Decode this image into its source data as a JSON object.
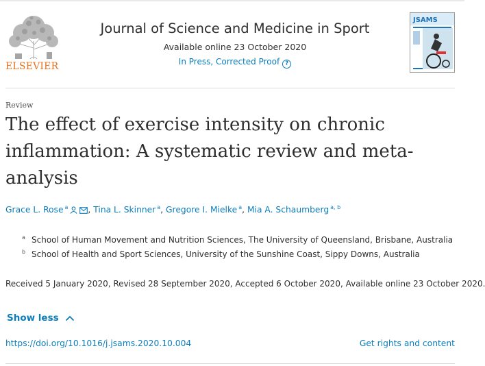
{
  "publisher": {
    "logo_word": "ELSEVIER"
  },
  "journal": {
    "title": "Journal of Science and Medicine in Sport",
    "available_online": "Available online 23 October 2020",
    "status": "In Press, Corrected Proof",
    "help_symbol": "?",
    "cover_label": "JSAMS"
  },
  "article": {
    "type": "Review",
    "title": "The effect of exercise intensity on chronic inflammation: A systematic review and meta-analysis",
    "authors": [
      {
        "name": "Grace L. Rose",
        "affil": "a",
        "icons": [
          "person-icon",
          "email-icon"
        ]
      },
      {
        "name": "Tina L. Skinner",
        "affil": "a"
      },
      {
        "name": "Gregore I. Mielke",
        "affil": "a"
      },
      {
        "name": "Mia A. Schaumberg",
        "affil": "a, b"
      }
    ],
    "author_separator": ",",
    "affiliations": [
      {
        "mark": "a",
        "text": "School of Human Movement and Nutrition Sciences, The University of Queensland, Brisbane, Australia"
      },
      {
        "mark": "b",
        "text": "School of Health and Sport Sciences, University of the Sunshine Coast, Sippy Downs, Australia"
      }
    ],
    "dates": "Received 5 January 2020, Revised 28 September 2020, Accepted 6 October 2020, Available online 23 October 2020.",
    "show_less_label": "Show less",
    "doi_link": "https://doi.org/10.1016/j.jsams.2020.10.004",
    "rights_label": "Get rights and content"
  },
  "colors": {
    "link": "#0c7dbb",
    "elsevier_orange": "#e9711c",
    "text": "#2e2e2e"
  }
}
